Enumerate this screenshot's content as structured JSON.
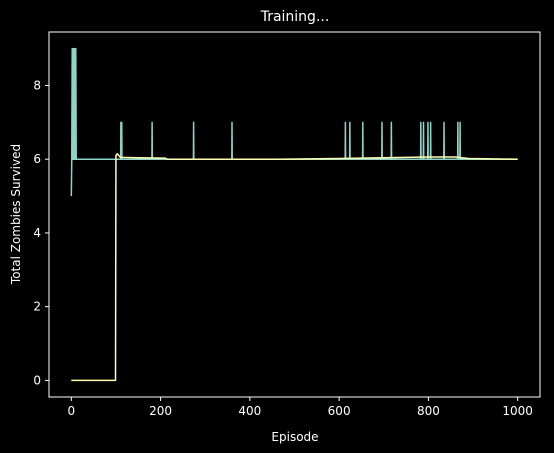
{
  "chart_data": {
    "type": "line",
    "title": "Training...",
    "xlabel": "Episode",
    "ylabel": "Total Zombies Survived",
    "xlim": [
      -50,
      1050
    ],
    "ylim": [
      -0.45,
      9.45
    ],
    "xticks": [
      0,
      200,
      400,
      600,
      800,
      1000
    ],
    "yticks": [
      0,
      2,
      4,
      6,
      8
    ],
    "grid": false,
    "background": "#000000",
    "foreground": "#ffffff",
    "series": [
      {
        "color": "#8dd3c7",
        "baseline": 6,
        "points": [
          [
            0,
            5
          ],
          [
            1,
            6
          ],
          [
            2,
            9
          ],
          [
            3,
            6
          ],
          [
            4,
            9
          ],
          [
            5,
            6
          ],
          [
            6,
            9
          ],
          [
            7,
            6
          ],
          [
            8,
            9
          ],
          [
            9,
            6
          ],
          [
            10,
            9
          ],
          [
            11,
            6
          ],
          [
            12,
            6
          ]
        ],
        "spikes": [
          [
            111,
            7
          ],
          [
            113,
            7
          ],
          [
            181,
            7
          ],
          [
            274,
            7
          ],
          [
            360,
            7
          ],
          [
            614,
            7
          ],
          [
            624,
            7
          ],
          [
            653,
            7
          ],
          [
            696,
            7
          ],
          [
            717,
            7
          ],
          [
            783,
            7
          ],
          [
            789,
            7
          ],
          [
            799,
            7
          ],
          [
            805,
            7
          ],
          [
            835,
            7
          ],
          [
            866,
            7
          ],
          [
            871,
            7
          ]
        ],
        "end": 1000
      },
      {
        "color": "#ffffb3",
        "points": [
          [
            0,
            0
          ],
          [
            99,
            0
          ],
          [
            100,
            6.1
          ],
          [
            103,
            6.15
          ],
          [
            106,
            6.1
          ],
          [
            110,
            6.05
          ],
          [
            150,
            6.04
          ],
          [
            210,
            6.03
          ],
          [
            215,
            6.0
          ],
          [
            460,
            6.0
          ],
          [
            600,
            6.02
          ],
          [
            700,
            6.04
          ],
          [
            800,
            6.06
          ],
          [
            860,
            6.06
          ],
          [
            890,
            6.02
          ],
          [
            1000,
            6.0
          ]
        ]
      }
    ]
  }
}
